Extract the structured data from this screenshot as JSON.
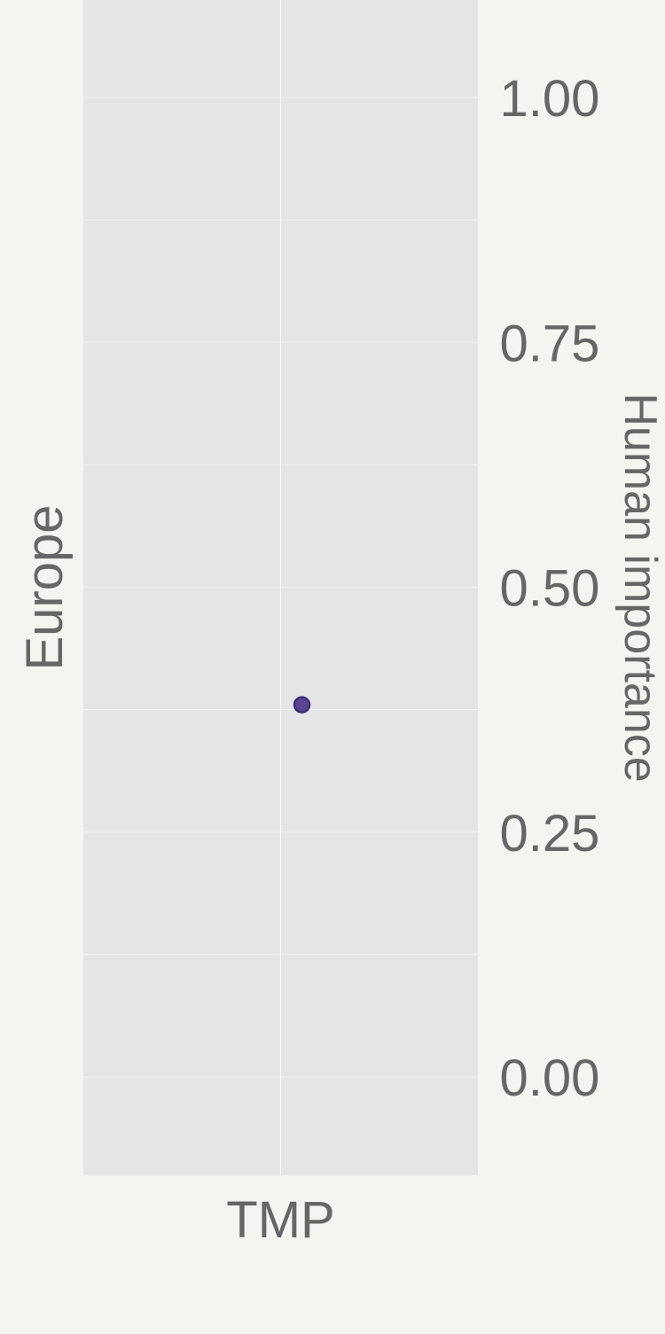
{
  "colors": {
    "page_background": "#f2f5f0",
    "panel_background": "#e5e5e5",
    "gridline": "#ffffff",
    "text": "#666666",
    "point_fill": "#5b4591",
    "point_stroke": "#3d2c78"
  },
  "chart_data": {
    "type": "scatter",
    "facet_label": "Europe",
    "xlabel": "",
    "ylabel": "Human importance",
    "y_axis_side": "right",
    "categories": [
      "TMP"
    ],
    "points": [
      {
        "category": "TMP",
        "value": 0.38
      }
    ],
    "ylim": [
      -0.1,
      1.1
    ],
    "y_ticks": [
      0.0,
      0.25,
      0.5,
      0.75,
      1.0
    ],
    "y_tick_labels": [
      "0.00",
      "0.25",
      "0.50",
      "0.75",
      "1.00"
    ],
    "y_minor_ticks": [
      0.125,
      0.375,
      0.625,
      0.875
    ],
    "grid": true
  }
}
